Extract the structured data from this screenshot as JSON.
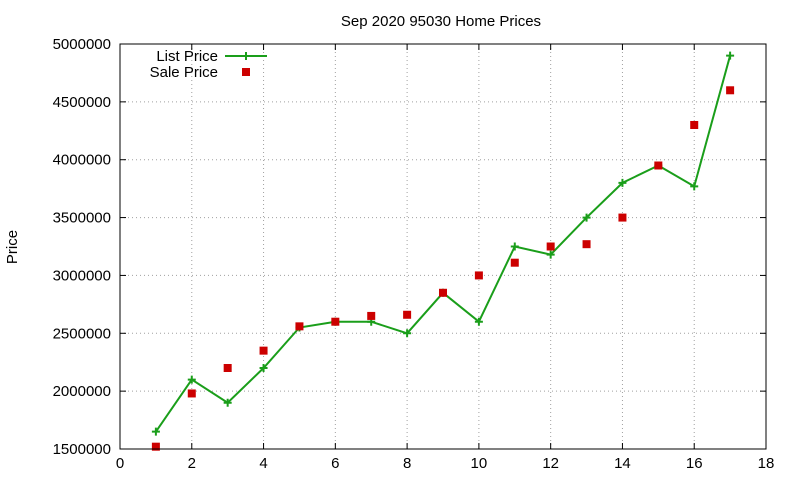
{
  "chart_data": {
    "type": "line",
    "title": "Sep 2020 95030 Home Prices",
    "xlabel": "",
    "ylabel": "Price",
    "xlim": [
      0,
      18
    ],
    "ylim": [
      1500000,
      5000000
    ],
    "x_ticks": [
      0,
      2,
      4,
      6,
      8,
      10,
      12,
      14,
      16,
      18
    ],
    "y_ticks": [
      1500000,
      2000000,
      2500000,
      3000000,
      3500000,
      4000000,
      4500000,
      5000000
    ],
    "grid": true,
    "legend_position": "top-left",
    "x": [
      1,
      2,
      3,
      4,
      5,
      6,
      7,
      8,
      9,
      10,
      11,
      12,
      13,
      14,
      15,
      16,
      17
    ],
    "series": [
      {
        "name": "List Price",
        "style": "line-plus",
        "color": "#1a9e1a",
        "values": [
          1650000,
          2100000,
          1900000,
          2200000,
          2550000,
          2600000,
          2600000,
          2500000,
          2850000,
          2600000,
          3250000,
          3180000,
          3500000,
          3800000,
          3950000,
          3770000,
          4900000
        ]
      },
      {
        "name": "Sale Price",
        "style": "square",
        "color": "#cc0000",
        "values": [
          1520000,
          1980000,
          2200000,
          2350000,
          2560000,
          2600000,
          2650000,
          2660000,
          2850000,
          3000000,
          3110000,
          3250000,
          3270000,
          3500000,
          3950000,
          4300000,
          4600000
        ]
      }
    ]
  }
}
